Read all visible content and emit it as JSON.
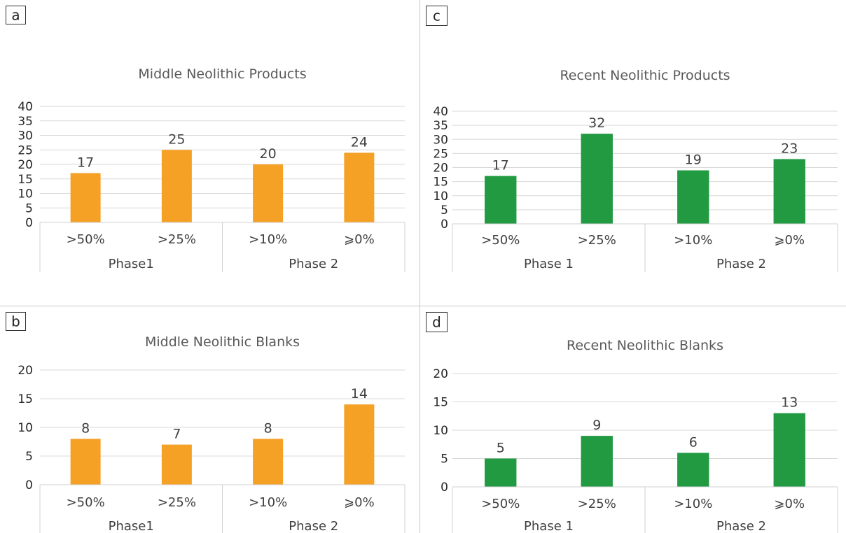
{
  "chart_data": [
    {
      "panel_label": "a",
      "type": "bar",
      "title": "Middle Neolithic Products",
      "group_labels": [
        "Phase1",
        "Phase 2"
      ],
      "categories": [
        ">50%",
        ">25%",
        ">10%",
        "⩾0%"
      ],
      "values": [
        17,
        25,
        20,
        24
      ],
      "ylim": [
        0,
        40
      ],
      "yticks": [
        0,
        5,
        10,
        15,
        20,
        25,
        30,
        35,
        40
      ],
      "color": "#f4a126",
      "grid": true,
      "legend": "none"
    },
    {
      "panel_label": "b",
      "type": "bar",
      "title": "Middle Neolithic Blanks",
      "group_labels": [
        "Phase1",
        "Phase 2"
      ],
      "categories": [
        ">50%",
        ">25%",
        ">10%",
        "⩾0%"
      ],
      "values": [
        8,
        7,
        8,
        14
      ],
      "ylim": [
        0,
        20
      ],
      "yticks": [
        0,
        5,
        10,
        15,
        20
      ],
      "color": "#f4a126",
      "grid": true,
      "legend": "none"
    },
    {
      "panel_label": "c",
      "type": "bar",
      "title": "Recent Neolithic Products",
      "group_labels": [
        "Phase 1",
        "Phase 2"
      ],
      "categories": [
        ">50%",
        ">25%",
        ">10%",
        "⩾0%"
      ],
      "values": [
        17,
        32,
        19,
        23
      ],
      "ylim": [
        0,
        40
      ],
      "yticks": [
        0,
        5,
        10,
        15,
        20,
        25,
        30,
        35,
        40
      ],
      "color": "#219a42",
      "grid": true,
      "legend": "none"
    },
    {
      "panel_label": "d",
      "type": "bar",
      "title": "Recent Neolithic Blanks",
      "group_labels": [
        "Phase 1",
        "Phase 2"
      ],
      "categories": [
        ">50%",
        ">25%",
        ">10%",
        "⩾0%"
      ],
      "values": [
        5,
        9,
        6,
        13
      ],
      "ylim": [
        0,
        20
      ],
      "yticks": [
        0,
        5,
        10,
        15,
        20
      ],
      "color": "#219a42",
      "grid": true,
      "legend": "none"
    }
  ]
}
